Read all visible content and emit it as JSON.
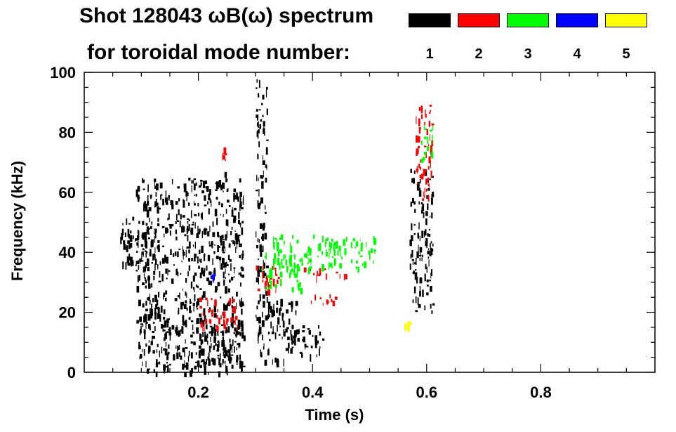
{
  "legend": {
    "title_line1": "Shot 128043 ωB(ω) spectrum",
    "title_line2": "for toroidal mode number:",
    "modes": [
      {
        "label": "1",
        "color": "#000000"
      },
      {
        "label": "2",
        "color": "#ff0000"
      },
      {
        "label": "3",
        "color": "#00ff00"
      },
      {
        "label": "4",
        "color": "#0000ff"
      },
      {
        "label": "5",
        "color": "#ffff00"
      }
    ]
  },
  "chart_data": {
    "type": "heatmap",
    "title": "Shot 128043 ωB(ω) spectrum",
    "xlabel": "Time (s)",
    "ylabel": "Frequency (kHz)",
    "xlim": [
      0.0,
      1.0
    ],
    "ylim": [
      0,
      100
    ],
    "x_ticks": [
      0.2,
      0.4,
      0.6,
      0.8
    ],
    "y_ticks": [
      0,
      20,
      40,
      60,
      80,
      100
    ],
    "legend_position": "top",
    "series": [
      {
        "name": "1",
        "color": "#000000",
        "regions": [
          {
            "x": [
              0.06,
              0.13
            ],
            "y": [
              35,
              52
            ]
          },
          {
            "x": [
              0.09,
              0.28
            ],
            "y": [
              0,
              65
            ]
          },
          {
            "x": [
              0.2,
              0.27
            ],
            "y": [
              3,
              15
            ]
          },
          {
            "x": [
              0.24,
              0.25
            ],
            "y": [
              60,
              67
            ]
          },
          {
            "x": [
              0.3,
              0.37
            ],
            "y": [
              4,
              25
            ]
          },
          {
            "x": [
              0.3,
              0.32
            ],
            "y": [
              20,
              98
            ]
          },
          {
            "x": [
              0.37,
              0.42
            ],
            "y": [
              6,
              16
            ]
          },
          {
            "x": [
              0.57,
              0.61
            ],
            "y": [
              20,
              68
            ]
          }
        ]
      },
      {
        "name": "2",
        "color": "#ff0000",
        "regions": [
          {
            "x": [
              0.2,
              0.27
            ],
            "y": [
              15,
              25
            ]
          },
          {
            "x": [
              0.24,
              0.25
            ],
            "y": [
              70,
              75
            ]
          },
          {
            "x": [
              0.3,
              0.34
            ],
            "y": [
              27,
              36
            ]
          },
          {
            "x": [
              0.38,
              0.46
            ],
            "y": [
              32,
              35
            ]
          },
          {
            "x": [
              0.39,
              0.45
            ],
            "y": [
              23,
              26
            ]
          },
          {
            "x": [
              0.58,
              0.61
            ],
            "y": [
              58,
              90
            ]
          }
        ]
      },
      {
        "name": "3",
        "color": "#00ff00",
        "regions": [
          {
            "x": [
              0.33,
              0.51
            ],
            "y": [
              35,
              46
            ]
          },
          {
            "x": [
              0.31,
              0.38
            ],
            "y": [
              28,
              40
            ]
          },
          {
            "x": [
              0.59,
              0.61
            ],
            "y": [
              70,
              83
            ]
          }
        ]
      },
      {
        "name": "4",
        "color": "#0000ff",
        "regions": [
          {
            "x": [
              0.22,
              0.23
            ],
            "y": [
              32,
              34
            ]
          }
        ]
      },
      {
        "name": "5",
        "color": "#ffff00",
        "regions": [
          {
            "x": [
              0.56,
              0.57
            ],
            "y": [
              16,
              17
            ]
          }
        ]
      }
    ]
  }
}
